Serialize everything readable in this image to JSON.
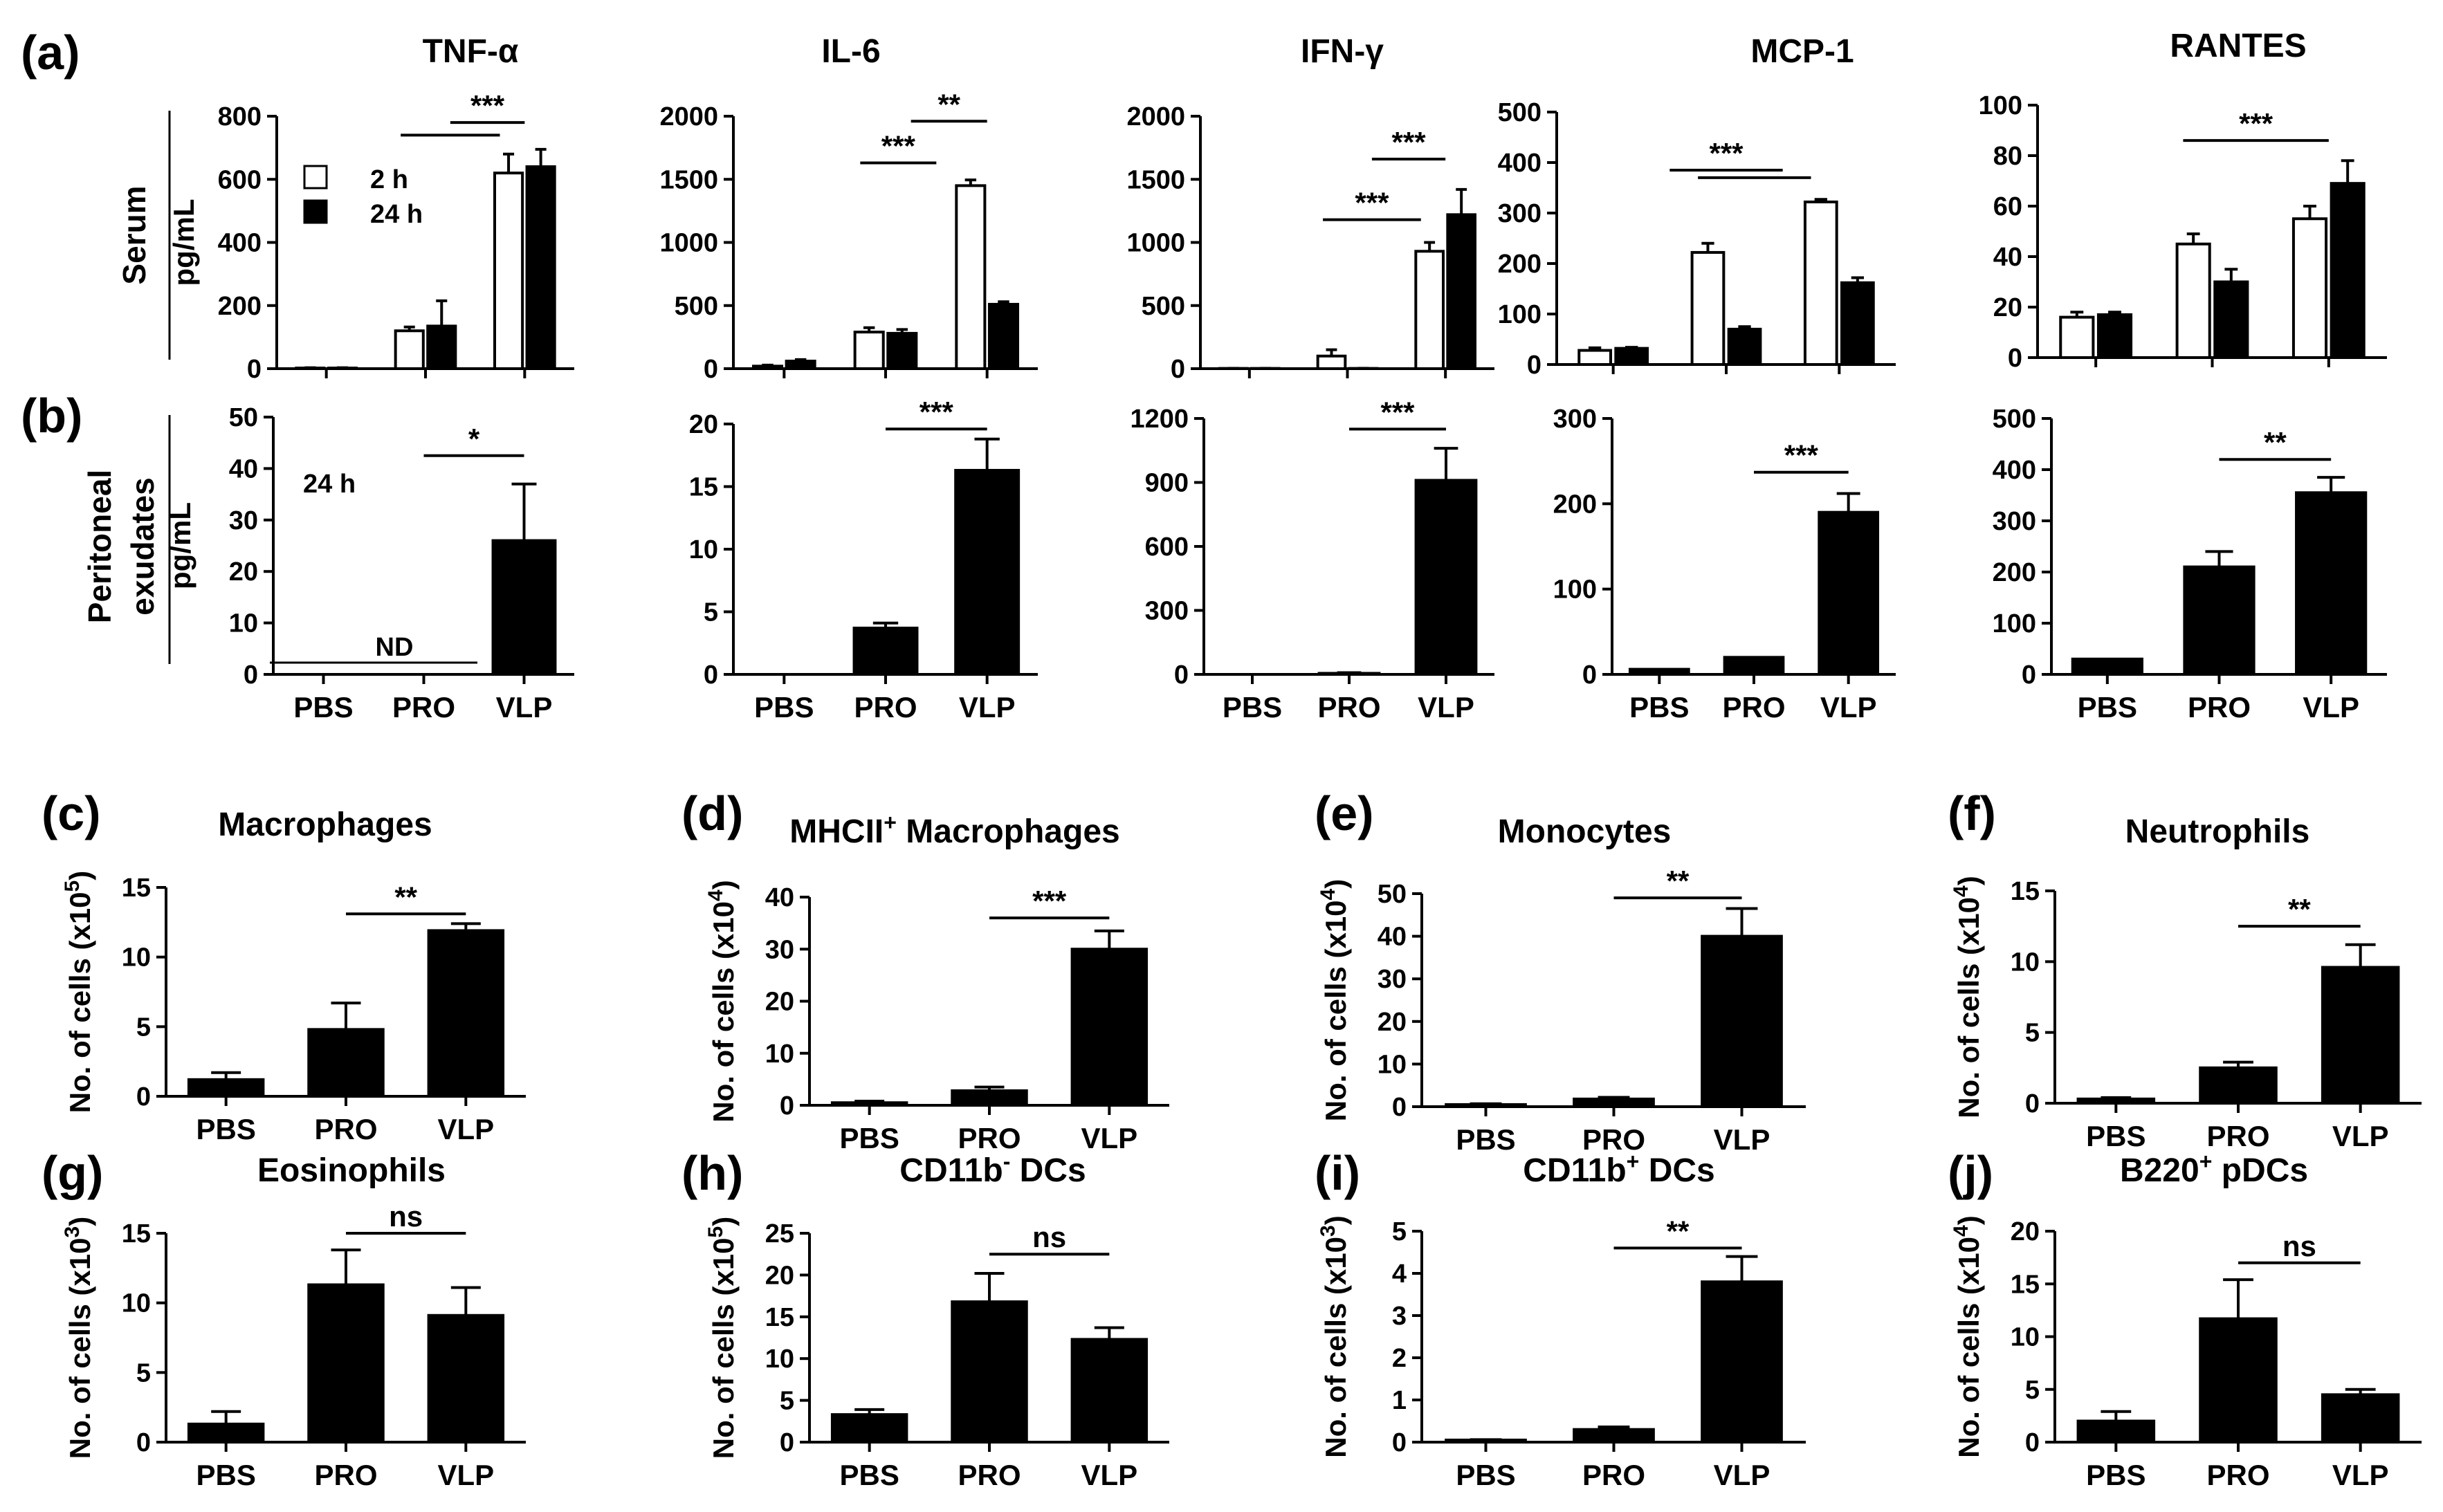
{
  "figure_labels": {
    "a": "(a)",
    "b": "(b)",
    "c": "(c)",
    "d": "(d)",
    "e": "(e)",
    "f": "(f)",
    "g": "(g)",
    "h": "(h)",
    "i": "(i)",
    "j": "(j)"
  },
  "row_labels": {
    "serum": "Serum",
    "peritoneal_line1": "Peritoneal",
    "peritoneal_line2": "exudates"
  },
  "legend": {
    "h2": "2 h",
    "h24": "24 h"
  },
  "annotations": {
    "b_time": "24 h",
    "tnf_nd": "ND"
  },
  "colors": {
    "white_bar": "#ffffff",
    "black_bar": "#000000",
    "axis": "#000000"
  },
  "chart_data": [
    {
      "id": "a1",
      "type": "bar",
      "title": "TNF-α",
      "ylabel": "pg/mL",
      "ylim": [
        0,
        800
      ],
      "yticks": [
        0,
        200,
        400,
        600,
        800
      ],
      "grouped": true,
      "categories": [
        "PBS",
        "PRO",
        "VLP"
      ],
      "series": [
        {
          "name": "2 h",
          "values": [
            2,
            120,
            620
          ],
          "errors": [
            1,
            12,
            60
          ]
        },
        {
          "name": "24 h",
          "values": [
            2,
            135,
            640
          ],
          "errors": [
            1,
            80,
            55
          ]
        }
      ],
      "sig": [
        {
          "x1": 1,
          "x2": 2,
          "y": 740,
          "label": ""
        },
        {
          "x1": 1.5,
          "x2": 2.25,
          "y": 780,
          "label": "***"
        }
      ]
    },
    {
      "id": "a2",
      "type": "bar",
      "title": "IL-6",
      "ylabel": "",
      "ylim": [
        0,
        2000
      ],
      "yticks": [
        0,
        500,
        1000,
        1500,
        2000
      ],
      "grouped": true,
      "categories": [
        "PBS",
        "PRO",
        "VLP"
      ],
      "series": [
        {
          "name": "2 h",
          "values": [
            20,
            290,
            1450
          ],
          "errors": [
            8,
            35,
            45
          ]
        },
        {
          "name": "24 h",
          "values": [
            60,
            280,
            510
          ],
          "errors": [
            12,
            30,
            20
          ]
        }
      ],
      "sig": [
        {
          "x1": 1,
          "x2": 1.75,
          "y": 1630,
          "label": "***"
        },
        {
          "x1": 1.5,
          "x2": 2.25,
          "y": 1960,
          "label": "**"
        }
      ]
    },
    {
      "id": "a3",
      "type": "bar",
      "title": "IFN-γ",
      "ylabel": "",
      "ylim": [
        0,
        2000
      ],
      "yticks": [
        0,
        500,
        1000,
        1500,
        2000
      ],
      "grouped": true,
      "categories": [
        "PBS",
        "PRO",
        "VLP"
      ],
      "series": [
        {
          "name": "2 h",
          "values": [
            2,
            100,
            930
          ],
          "errors": [
            1,
            50,
            70
          ]
        },
        {
          "name": "24 h",
          "values": [
            2,
            2,
            1220
          ],
          "errors": [
            1,
            1,
            200
          ]
        }
      ],
      "sig": [
        {
          "x1": 1,
          "x2": 2.0,
          "y": 1180,
          "label": "***"
        },
        {
          "x1": 1.5,
          "x2": 2.25,
          "y": 1660,
          "label": "***"
        }
      ]
    },
    {
      "id": "a4",
      "type": "bar",
      "title": "MCP-1",
      "ylabel": "",
      "ylim": [
        0,
        500
      ],
      "yticks": [
        0,
        100,
        200,
        300,
        400,
        500
      ],
      "grouped": true,
      "categories": [
        "PBS",
        "PRO",
        "VLP"
      ],
      "series": [
        {
          "name": "2 h",
          "values": [
            28,
            222,
            322
          ],
          "errors": [
            5,
            18,
            5
          ]
        },
        {
          "name": "24 h",
          "values": [
            32,
            70,
            162
          ],
          "errors": [
            2,
            5,
            10
          ]
        }
      ],
      "sig": [
        {
          "x1": 0.75,
          "x2": 1.75,
          "y": 385,
          "label": "***"
        },
        {
          "x1": 1,
          "x2": 2,
          "y": 370,
          "label": ""
        }
      ]
    },
    {
      "id": "a5",
      "type": "bar",
      "title": "RANTES",
      "ylabel": "",
      "ylim": [
        0,
        100
      ],
      "yticks": [
        0,
        20,
        40,
        60,
        80,
        100
      ],
      "grouped": true,
      "categories": [
        "PBS",
        "PRO",
        "VLP"
      ],
      "series": [
        {
          "name": "2 h",
          "values": [
            16,
            45,
            55
          ],
          "errors": [
            2,
            4,
            5
          ]
        },
        {
          "name": "24 h",
          "values": [
            17,
            30,
            69
          ],
          "errors": [
            1,
            5,
            9
          ]
        }
      ],
      "sig": [
        {
          "x1": 1,
          "x2": 2.25,
          "y": 86,
          "label": "***"
        }
      ]
    },
    {
      "id": "b1",
      "type": "bar",
      "title": "",
      "ylabel": "pg/mL",
      "ylim": [
        0,
        50
      ],
      "yticks": [
        0,
        10,
        20,
        30,
        40,
        50
      ],
      "grouped": false,
      "categories": [
        "PBS",
        "PRO",
        "VLP"
      ],
      "values": [
        0,
        0,
        26
      ],
      "errors": [
        0,
        0,
        11
      ],
      "sig": [
        {
          "x1": 1,
          "x2": 2,
          "y": 42.5,
          "label": "*"
        }
      ]
    },
    {
      "id": "b2",
      "type": "bar",
      "title": "",
      "ylabel": "",
      "ylim": [
        0,
        20
      ],
      "yticks": [
        0,
        5,
        10,
        15,
        20
      ],
      "grouped": false,
      "categories": [
        "PBS",
        "PRO",
        "VLP"
      ],
      "values": [
        0,
        3.7,
        16.3
      ],
      "errors": [
        0,
        0.4,
        2.5
      ],
      "sig": [
        {
          "x1": 1,
          "x2": 2,
          "y": 19.6,
          "label": "***"
        }
      ]
    },
    {
      "id": "b3",
      "type": "bar",
      "title": "",
      "ylabel": "",
      "ylim": [
        0,
        1200
      ],
      "yticks": [
        0,
        300,
        600,
        900,
        1200
      ],
      "grouped": false,
      "categories": [
        "PBS",
        "PRO",
        "VLP"
      ],
      "values": [
        0,
        5,
        910
      ],
      "errors": [
        0,
        3,
        150
      ],
      "sig": [
        {
          "x1": 1,
          "x2": 2,
          "y": 1150,
          "label": "***"
        }
      ]
    },
    {
      "id": "b4",
      "type": "bar",
      "title": "",
      "ylabel": "",
      "ylim": [
        0,
        300
      ],
      "yticks": [
        0,
        100,
        200,
        300
      ],
      "grouped": false,
      "categories": [
        "PBS",
        "PRO",
        "VLP"
      ],
      "values": [
        6,
        20,
        190
      ],
      "errors": [
        0,
        0,
        22
      ],
      "sig": [
        {
          "x1": 1,
          "x2": 2,
          "y": 237,
          "label": "***"
        }
      ]
    },
    {
      "id": "b5",
      "type": "bar",
      "title": "",
      "ylabel": "",
      "ylim": [
        0,
        500
      ],
      "yticks": [
        0,
        100,
        200,
        300,
        400,
        500
      ],
      "grouped": false,
      "categories": [
        "PBS",
        "PRO",
        "VLP"
      ],
      "values": [
        30,
        210,
        355
      ],
      "errors": [
        0,
        30,
        30
      ],
      "sig": [
        {
          "x1": 1,
          "x2": 2,
          "y": 420,
          "label": "**"
        }
      ]
    },
    {
      "id": "c",
      "type": "bar",
      "title": "Macrophages",
      "ylabel": "No. of cells (x10",
      "ylabel_sup": "5",
      "ylabel_end": ")",
      "ylim": [
        0,
        15
      ],
      "yticks": [
        0,
        5,
        10,
        15
      ],
      "grouped": false,
      "categories": [
        "PBS",
        "PRO",
        "VLP"
      ],
      "values": [
        1.2,
        4.8,
        11.9
      ],
      "errors": [
        0.5,
        1.9,
        0.5
      ],
      "sig": [
        {
          "x1": 1,
          "x2": 2,
          "y": 13.1,
          "label": "**"
        }
      ]
    },
    {
      "id": "d",
      "type": "bar",
      "title": "MHCII",
      "title_sup": "+",
      "title_end": " Macrophages",
      "ylabel": "No. of cells (x10",
      "ylabel_sup": "4",
      "ylabel_end": ")",
      "ylim": [
        0,
        40
      ],
      "yticks": [
        0,
        10,
        20,
        30,
        40
      ],
      "grouped": false,
      "categories": [
        "PBS",
        "PRO",
        "VLP"
      ],
      "values": [
        0.5,
        2.8,
        30
      ],
      "errors": [
        0.3,
        0.7,
        3.5
      ],
      "sig": [
        {
          "x1": 1,
          "x2": 2,
          "y": 36,
          "label": "***"
        }
      ]
    },
    {
      "id": "e",
      "type": "bar",
      "title": "Monocytes",
      "ylabel": "No. of cells (x10",
      "ylabel_sup": "4",
      "ylabel_end": ")",
      "ylim": [
        0,
        50
      ],
      "yticks": [
        0,
        10,
        20,
        30,
        40,
        50
      ],
      "grouped": false,
      "categories": [
        "PBS",
        "PRO",
        "VLP"
      ],
      "values": [
        0.5,
        1.8,
        40
      ],
      "errors": [
        0.2,
        0.4,
        6.5
      ],
      "sig": [
        {
          "x1": 1,
          "x2": 2,
          "y": 49,
          "label": "**"
        }
      ]
    },
    {
      "id": "f",
      "type": "bar",
      "title": "Neutrophils",
      "ylabel": "No. of cells (x10",
      "ylabel_sup": "4",
      "ylabel_end": ")",
      "ylim": [
        0,
        15
      ],
      "yticks": [
        0,
        5,
        10,
        15
      ],
      "grouped": false,
      "categories": [
        "PBS",
        "PRO",
        "VLP"
      ],
      "values": [
        0.3,
        2.5,
        9.6
      ],
      "errors": [
        0.1,
        0.4,
        1.6
      ],
      "sig": [
        {
          "x1": 1,
          "x2": 2,
          "y": 12.5,
          "label": "**"
        }
      ]
    },
    {
      "id": "g",
      "type": "bar",
      "title": "Eosinophils",
      "ylabel": "No. of cells (x10",
      "ylabel_sup": "3",
      "ylabel_end": ")",
      "ylim": [
        0,
        15
      ],
      "yticks": [
        0,
        5,
        10,
        15
      ],
      "grouped": false,
      "categories": [
        "PBS",
        "PRO",
        "VLP"
      ],
      "values": [
        1.3,
        11.3,
        9.1
      ],
      "errors": [
        0.9,
        2.5,
        2.0
      ],
      "sig": [
        {
          "x1": 1,
          "x2": 2,
          "y": 15,
          "label": "ns"
        }
      ]
    },
    {
      "id": "h",
      "type": "bar",
      "title": "CD11b",
      "title_sup": "-",
      "title_end": " DCs",
      "ylabel": "No. of cells (x10",
      "ylabel_sup": "5",
      "ylabel_end": ")",
      "ylim": [
        0,
        25
      ],
      "yticks": [
        0,
        5,
        10,
        15,
        20,
        25
      ],
      "grouped": false,
      "categories": [
        "PBS",
        "PRO",
        "VLP"
      ],
      "values": [
        3.3,
        16.8,
        12.3
      ],
      "errors": [
        0.6,
        3.4,
        1.4
      ],
      "sig": [
        {
          "x1": 1,
          "x2": 2,
          "y": 22.5,
          "label": "ns"
        }
      ]
    },
    {
      "id": "i",
      "type": "bar",
      "title": "CD11b",
      "title_sup": "+",
      "title_end": " DCs",
      "ylabel": "No. of cells (x10",
      "ylabel_sup": "3",
      "ylabel_end": ")",
      "ylim": [
        0,
        5
      ],
      "yticks": [
        0,
        1,
        2,
        3,
        4,
        5
      ],
      "grouped": false,
      "categories": [
        "PBS",
        "PRO",
        "VLP"
      ],
      "values": [
        0.05,
        0.3,
        3.8
      ],
      "errors": [
        0.01,
        0.06,
        0.6
      ],
      "sig": [
        {
          "x1": 1,
          "x2": 2,
          "y": 4.6,
          "label": "**"
        }
      ]
    },
    {
      "id": "j",
      "type": "bar",
      "title": "B220",
      "title_sup": "+",
      "title_end": " pDCs",
      "ylabel": "No. of cells (x10",
      "ylabel_sup": "4",
      "ylabel_end": ")",
      "ylim": [
        0,
        20
      ],
      "yticks": [
        0,
        5,
        10,
        15,
        20
      ],
      "grouped": false,
      "categories": [
        "PBS",
        "PRO",
        "VLP"
      ],
      "values": [
        2,
        11.7,
        4.5
      ],
      "errors": [
        0.9,
        3.7,
        0.5
      ],
      "sig": [
        {
          "x1": 1,
          "x2": 2,
          "y": 17,
          "label": "ns"
        }
      ]
    }
  ]
}
